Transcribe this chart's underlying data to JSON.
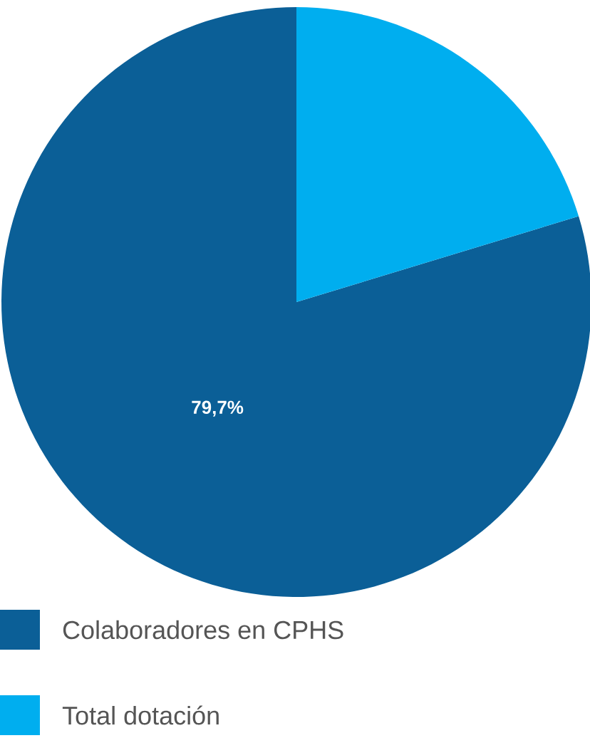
{
  "chart_data": {
    "type": "pie",
    "categories": [
      "Colaboradores en CPHS",
      "Total dotación"
    ],
    "values": [
      79.7,
      20.3
    ],
    "colors": [
      "#0b5f97",
      "#00aeef"
    ],
    "value_labels": [
      "79,7%",
      null
    ],
    "legend": "bottom"
  }
}
